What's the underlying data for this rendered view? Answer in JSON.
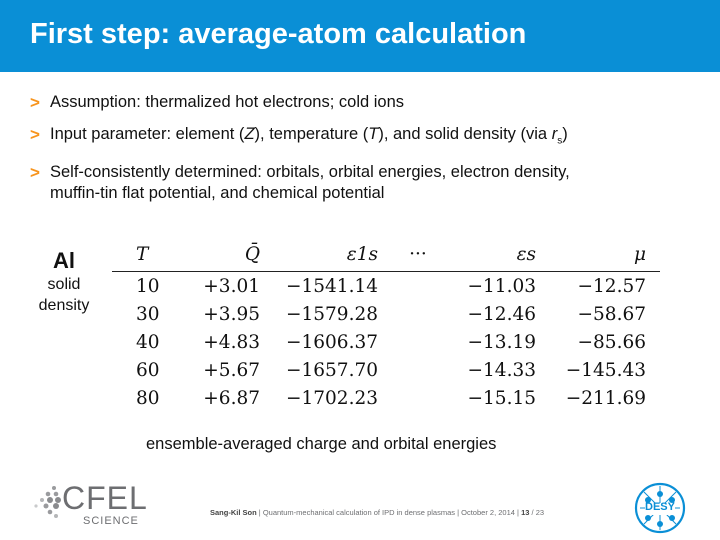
{
  "slide": {
    "title": "First step: average-atom calculation"
  },
  "bullets": [
    {
      "marker": ">",
      "text": "Assumption: thermalized hot electrons; cold ions"
    },
    {
      "marker": ">",
      "pre": "Input parameter: element (",
      "z": "Z",
      "mid1": "), temperature (",
      "t": "T",
      "mid2": "), and solid density (via ",
      "rs": "r",
      "rs_sub": "s",
      "post": ")"
    },
    {
      "marker": ">",
      "line1": "Self-consistently determined: orbitals, orbital energies, electron density,",
      "line2": "muffin-tin flat potential, and chemical potential"
    }
  ],
  "side_label": {
    "element": "Al",
    "line1": "solid",
    "line2": "density"
  },
  "table": {
    "headers": [
      "T",
      "Q̄",
      "ε1s",
      "···",
      "εs",
      "μ"
    ],
    "rows": [
      [
        "10",
        "+3.01",
        "−1541.14",
        "",
        "−11.03",
        "−12.57"
      ],
      [
        "30",
        "+3.95",
        "−1579.28",
        "",
        "−12.46",
        "−58.67"
      ],
      [
        "40",
        "+4.83",
        "−1606.37",
        "",
        "−13.19",
        "−85.66"
      ],
      [
        "60",
        "+5.67",
        "−1657.70",
        "",
        "−14.33",
        "−145.43"
      ],
      [
        "80",
        "+6.87",
        "−1702.23",
        "",
        "−15.15",
        "−211.69"
      ]
    ]
  },
  "caption": "ensemble-averaged charge and orbital energies",
  "footer": {
    "author": "Sang-Kil Son",
    "sep": "|",
    "talk": "Quantum-mechanical calculation of IPD in dense plasmas",
    "date": "October 2, 2014",
    "page": "13",
    "total": "23"
  },
  "logos": {
    "cfel_word": "CFEL",
    "cfel_sub": "SCIENCE",
    "desy": "DESY"
  },
  "colors": {
    "title_bar": "#0a8fd6",
    "bullet_marker": "#f7941d",
    "desy_blue": "#0a8fd6"
  }
}
